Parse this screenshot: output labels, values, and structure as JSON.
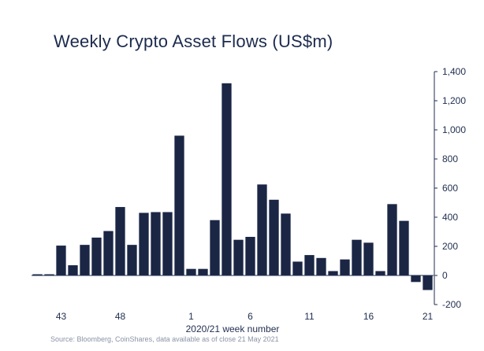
{
  "chart_data": {
    "type": "bar",
    "title": "Weekly Crypto Asset Flows (US$m)",
    "xlabel": "2020/21 week number",
    "ylabel": "",
    "ylim": [
      -200,
      1400
    ],
    "yticks": [
      -200,
      0,
      200,
      400,
      600,
      800,
      1000,
      1200,
      1400
    ],
    "ytick_labels": [
      "-200",
      "0",
      "200",
      "400",
      "600",
      "800",
      "1,000",
      "1,200",
      "1,400"
    ],
    "y_axis_side": "right",
    "grid": false,
    "color": "#1b2645",
    "categories": [
      "41",
      "42",
      "43",
      "44",
      "45",
      "46",
      "47",
      "48",
      "49",
      "50",
      "51",
      "52",
      "53",
      "1",
      "2",
      "3",
      "4",
      "5",
      "6",
      "7",
      "8",
      "9",
      "10",
      "11",
      "12",
      "13",
      "14",
      "15",
      "16",
      "17",
      "18",
      "19",
      "20",
      "21"
    ],
    "values": [
      5,
      0,
      205,
      70,
      210,
      260,
      305,
      470,
      210,
      430,
      435,
      435,
      960,
      45,
      45,
      380,
      1320,
      245,
      265,
      625,
      520,
      425,
      95,
      140,
      120,
      30,
      110,
      245,
      225,
      30,
      490,
      375,
      -45,
      -100
    ],
    "xtick_labels": [
      "43",
      "48",
      "1",
      "6",
      "11",
      "16",
      "21"
    ],
    "xtick_categories": [
      "43",
      "48",
      "1",
      "6",
      "11",
      "16",
      "21"
    ]
  },
  "source": "Source: Bloomberg, CoinShares, data available as of close 21 May 2021"
}
